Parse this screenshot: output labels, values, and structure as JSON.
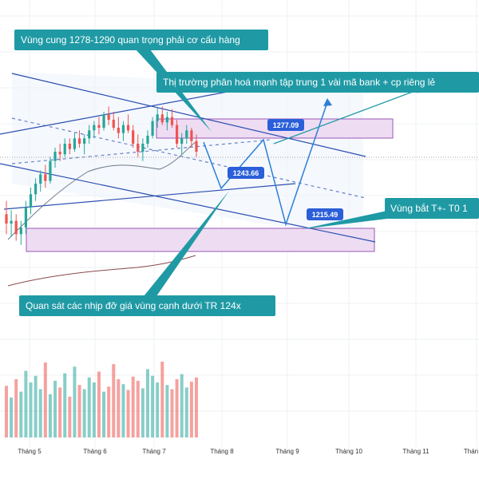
{
  "chart_data": {
    "type": "candlestick",
    "title": "",
    "xlabel": "",
    "ylabel": "",
    "x_ticks": [
      "Tháng 5",
      "Tháng 6",
      "Tháng 7",
      "Tháng 8",
      "Tháng 9",
      "Tháng 10",
      "Tháng 11",
      "Thán"
    ],
    "grid": true,
    "price_levels": [
      {
        "label": "1277.09",
        "value": 1277.09
      },
      {
        "label": "1243.66",
        "value": 1243.66
      },
      {
        "label": "1215.49",
        "value": 1215.49
      }
    ],
    "zones": [
      {
        "name": "resistance",
        "range": [
          1278,
          1290
        ]
      },
      {
        "name": "support",
        "range": [
          1205,
          1218
        ]
      }
    ],
    "annotations": [
      "Vùng cung 1278-1290 quan trọng phải cơ cấu hàng",
      "Thị trường phân hoá mạnh tập trung 1 vài mã bank + cp riêng lẻ",
      "Vùng bắt T+- T0 1",
      "Quan sát các nhịp đỡ giá vùng cạnh dưới TR 124x"
    ],
    "candles_ohlc": [
      [
        1205,
        1215,
        1190,
        1198
      ],
      [
        1198,
        1208,
        1188,
        1200
      ],
      [
        1200,
        1205,
        1185,
        1190
      ],
      [
        1190,
        1200,
        1182,
        1195
      ],
      [
        1195,
        1215,
        1190,
        1210
      ],
      [
        1210,
        1225,
        1205,
        1220
      ],
      [
        1220,
        1232,
        1215,
        1228
      ],
      [
        1228,
        1238,
        1222,
        1235
      ],
      [
        1235,
        1242,
        1225,
        1230
      ],
      [
        1230,
        1248,
        1228,
        1245
      ],
      [
        1245,
        1255,
        1240,
        1252
      ],
      [
        1252,
        1258,
        1245,
        1250
      ],
      [
        1250,
        1262,
        1248,
        1258
      ],
      [
        1258,
        1262,
        1250,
        1254
      ],
      [
        1254,
        1266,
        1252,
        1262
      ],
      [
        1262,
        1268,
        1255,
        1258
      ],
      [
        1258,
        1265,
        1250,
        1262
      ],
      [
        1262,
        1272,
        1258,
        1268
      ],
      [
        1268,
        1275,
        1262,
        1272
      ],
      [
        1272,
        1278,
        1265,
        1270
      ],
      [
        1270,
        1282,
        1268,
        1280
      ],
      [
        1280,
        1286,
        1272,
        1276
      ],
      [
        1276,
        1282,
        1268,
        1270
      ],
      [
        1270,
        1278,
        1262,
        1266
      ],
      [
        1266,
        1275,
        1260,
        1272
      ],
      [
        1272,
        1280,
        1266,
        1268
      ],
      [
        1268,
        1272,
        1255,
        1258
      ],
      [
        1258,
        1265,
        1248,
        1252
      ],
      [
        1252,
        1262,
        1245,
        1258
      ],
      [
        1258,
        1268,
        1255,
        1264
      ],
      [
        1264,
        1278,
        1262,
        1275
      ],
      [
        1275,
        1285,
        1270,
        1280
      ],
      [
        1280,
        1286,
        1272,
        1274
      ],
      [
        1274,
        1282,
        1268,
        1278
      ],
      [
        1278,
        1284,
        1270,
        1272
      ],
      [
        1272,
        1276,
        1255,
        1258
      ],
      [
        1258,
        1266,
        1250,
        1262
      ],
      [
        1262,
        1272,
        1258,
        1268
      ],
      [
        1268,
        1270,
        1255,
        1260
      ],
      [
        1260,
        1265,
        1248,
        1252
      ]
    ],
    "volume": [
      62,
      48,
      70,
      55,
      80,
      66,
      74,
      58,
      90,
      52,
      68,
      60,
      77,
      49,
      85,
      63,
      58,
      72,
      66,
      79,
      55,
      61,
      88,
      70,
      64,
      57,
      73,
      68,
      59,
      82,
      74,
      66,
      91,
      63,
      58,
      70,
      76,
      60,
      67,
      72
    ]
  },
  "ui": {
    "colors": {
      "up": "#26a69a",
      "down": "#ef5350",
      "callout": "#1f9aa5",
      "trend": "#2b4fb0",
      "zone_fill": "#eedcf3",
      "zone_stroke": "#9b59b6",
      "tag": "#2b5fd9"
    }
  }
}
